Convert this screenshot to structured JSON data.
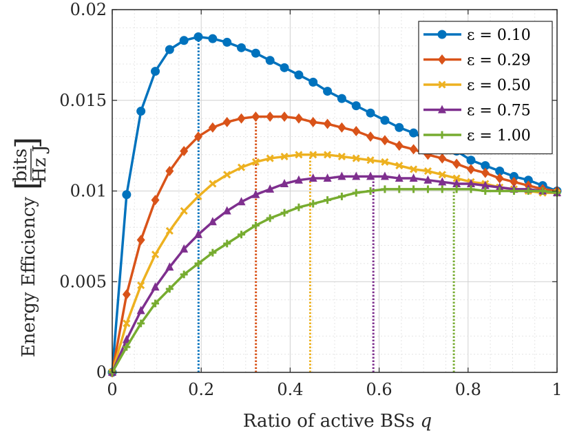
{
  "chart_data": {
    "type": "line",
    "xlabel": "Ratio of active BSs",
    "xlabel_var": "q",
    "ylabel": "Energy Efficiency",
    "yunit_num": "bits",
    "yunit_den": "Hz J",
    "xlim": [
      0,
      1
    ],
    "ylim": [
      0,
      0.02
    ],
    "xticks": [
      "0",
      "0.2",
      "0.4",
      "0.6",
      "0.8",
      "1"
    ],
    "yticks": [
      "0",
      "0.005",
      "0.01",
      "0.015",
      "0.02"
    ],
    "grid": true,
    "minor_grid": true,
    "legend_position": "top-right",
    "x": [
      0,
      0.0323,
      0.0645,
      0.0968,
      0.129,
      0.1613,
      0.1935,
      0.2258,
      0.2581,
      0.2903,
      0.3226,
      0.3548,
      0.3871,
      0.4194,
      0.4516,
      0.4839,
      0.5161,
      0.5484,
      0.5806,
      0.6129,
      0.6452,
      0.6774,
      0.7097,
      0.7419,
      0.7742,
      0.8065,
      0.8387,
      0.871,
      0.9032,
      0.9355,
      0.9677,
      1
    ],
    "series": [
      {
        "name": "ε = 0.10",
        "color": "#0072BD",
        "marker": "circle",
        "optimum_x": 0.194,
        "values": [
          0,
          0.0098,
          0.0144,
          0.0166,
          0.0178,
          0.0183,
          0.0185,
          0.0184,
          0.0182,
          0.0179,
          0.0176,
          0.0172,
          0.0168,
          0.0164,
          0.016,
          0.0155,
          0.0151,
          0.0147,
          0.0143,
          0.0139,
          0.0135,
          0.0132,
          0.0128,
          0.0125,
          0.0122,
          0.0117,
          0.0114,
          0.0111,
          0.0108,
          0.0106,
          0.0103,
          0.01
        ]
      },
      {
        "name": "ε = 0.29",
        "color": "#D95319",
        "marker": "diamond",
        "optimum_x": 0.323,
        "values": [
          0,
          0.0043,
          0.0073,
          0.0095,
          0.0111,
          0.0122,
          0.013,
          0.0135,
          0.0138,
          0.014,
          0.0141,
          0.0141,
          0.0141,
          0.014,
          0.0138,
          0.0137,
          0.0135,
          0.0133,
          0.013,
          0.0128,
          0.0125,
          0.0123,
          0.012,
          0.0118,
          0.0115,
          0.0112,
          0.011,
          0.0107,
          0.0105,
          0.0103,
          0.0101,
          0.01
        ]
      },
      {
        "name": "ε = 0.50",
        "color": "#EDB120",
        "marker": "x",
        "optimum_x": 0.445,
        "values": [
          0,
          0.0027,
          0.0048,
          0.0065,
          0.0078,
          0.0089,
          0.0097,
          0.0104,
          0.0109,
          0.0113,
          0.0116,
          0.0118,
          0.0119,
          0.012,
          0.012,
          0.012,
          0.0119,
          0.0118,
          0.0117,
          0.0116,
          0.0114,
          0.0112,
          0.0111,
          0.0109,
          0.0107,
          0.0105,
          0.0104,
          0.0102,
          0.0101,
          0.01,
          0.0099,
          0.0099
        ]
      },
      {
        "name": "ε = 0.75",
        "color": "#7E2F8E",
        "marker": "triangle",
        "optimum_x": 0.587,
        "values": [
          0,
          0.0018,
          0.0034,
          0.0047,
          0.0058,
          0.0068,
          0.0076,
          0.0083,
          0.0089,
          0.0094,
          0.0098,
          0.0101,
          0.0104,
          0.0106,
          0.0107,
          0.0107,
          0.0108,
          0.0108,
          0.0108,
          0.0108,
          0.0107,
          0.0107,
          0.0106,
          0.0105,
          0.0104,
          0.0104,
          0.0103,
          0.0102,
          0.0101,
          0.0101,
          0.01,
          0.0099
        ]
      },
      {
        "name": "ε = 1.00",
        "color": "#77AC30",
        "marker": "plus",
        "optimum_x": 0.768,
        "values": [
          0,
          0.0014,
          0.0027,
          0.0038,
          0.0046,
          0.0054,
          0.006,
          0.0066,
          0.0071,
          0.0076,
          0.0081,
          0.0085,
          0.0088,
          0.0091,
          0.0093,
          0.0095,
          0.0097,
          0.0099,
          0.01,
          0.0101,
          0.0101,
          0.0101,
          0.0101,
          0.0101,
          0.0101,
          0.0101,
          0.01,
          0.01,
          0.01,
          0.01,
          0.01,
          0.0099
        ]
      }
    ]
  }
}
